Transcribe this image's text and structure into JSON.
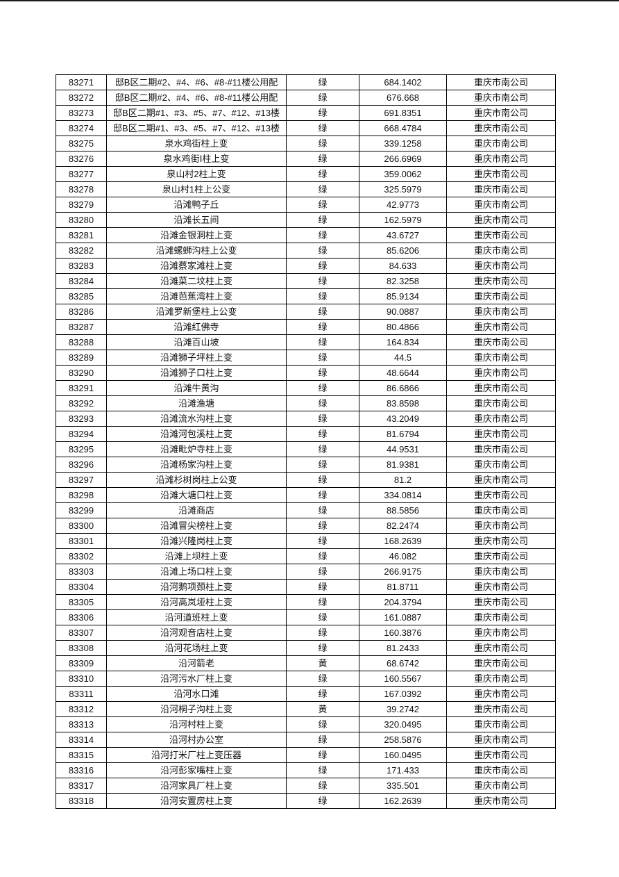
{
  "page": {
    "background_color": "#ffffff",
    "top_edge_color": "#1c1c1c",
    "table_border_color": "#000000"
  },
  "table": {
    "columns": [
      {
        "key": "id"
      },
      {
        "key": "name"
      },
      {
        "key": "status"
      },
      {
        "key": "value"
      },
      {
        "key": "company"
      }
    ],
    "rows": [
      {
        "id": "83271",
        "name": "邸B区二期#2、#4、#6、#8-#11楼公用配",
        "status": "绿",
        "value": "684.1402",
        "company": "重庆市南公司"
      },
      {
        "id": "83272",
        "name": "邸B区二期#2、#4、#6、#8-#11楼公用配",
        "status": "绿",
        "value": "676.668",
        "company": "重庆市南公司"
      },
      {
        "id": "83273",
        "name": "邸B区二期#1、#3、#5、#7、#12、#13楼",
        "status": "绿",
        "value": "691.8351",
        "company": "重庆市南公司"
      },
      {
        "id": "83274",
        "name": "邸B区二期#1、#3、#5、#7、#12、#13楼",
        "status": "绿",
        "value": "668.4784",
        "company": "重庆市南公司"
      },
      {
        "id": "83275",
        "name": "泉水鸡街柱上变",
        "status": "绿",
        "value": "339.1258",
        "company": "重庆市南公司"
      },
      {
        "id": "83276",
        "name": "泉水鸡街Ⅰ柱上变",
        "status": "绿",
        "value": "266.6969",
        "company": "重庆市南公司"
      },
      {
        "id": "83277",
        "name": "泉山村2柱上变",
        "status": "绿",
        "value": "359.0062",
        "company": "重庆市南公司"
      },
      {
        "id": "83278",
        "name": "泉山村1柱上公变",
        "status": "绿",
        "value": "325.5979",
        "company": "重庆市南公司"
      },
      {
        "id": "83279",
        "name": "沿滩鸭子丘",
        "status": "绿",
        "value": "42.9773",
        "company": "重庆市南公司"
      },
      {
        "id": "83280",
        "name": "沿滩长五间",
        "status": "绿",
        "value": "162.5979",
        "company": "重庆市南公司"
      },
      {
        "id": "83281",
        "name": "沿滩金银洞柱上变",
        "status": "绿",
        "value": "43.6727",
        "company": "重庆市南公司"
      },
      {
        "id": "83282",
        "name": "沿滩螺蛳沟柱上公变",
        "status": "绿",
        "value": "85.6206",
        "company": "重庆市南公司"
      },
      {
        "id": "83283",
        "name": "沿滩蔡家滩柱上变",
        "status": "绿",
        "value": "84.633",
        "company": "重庆市南公司"
      },
      {
        "id": "83284",
        "name": "沿滩菜二坟柱上变",
        "status": "绿",
        "value": "82.3258",
        "company": "重庆市南公司"
      },
      {
        "id": "83285",
        "name": "沿滩芭蕉湾柱上变",
        "status": "绿",
        "value": "85.9134",
        "company": "重庆市南公司"
      },
      {
        "id": "83286",
        "name": "沿滩罗新堡柱上公变",
        "status": "绿",
        "value": "90.0887",
        "company": "重庆市南公司"
      },
      {
        "id": "83287",
        "name": "沿滩红佛寺",
        "status": "绿",
        "value": "80.4866",
        "company": "重庆市南公司"
      },
      {
        "id": "83288",
        "name": "沿滩百山坡",
        "status": "绿",
        "value": "164.834",
        "company": "重庆市南公司"
      },
      {
        "id": "83289",
        "name": "沿滩狮子坪柱上变",
        "status": "绿",
        "value": "44.5",
        "company": "重庆市南公司"
      },
      {
        "id": "83290",
        "name": "沿滩狮子口柱上变",
        "status": "绿",
        "value": "48.6644",
        "company": "重庆市南公司"
      },
      {
        "id": "83291",
        "name": "沿滩牛黄沟",
        "status": "绿",
        "value": "86.6866",
        "company": "重庆市南公司"
      },
      {
        "id": "83292",
        "name": "沿滩渔塘",
        "status": "绿",
        "value": "83.8598",
        "company": "重庆市南公司"
      },
      {
        "id": "83293",
        "name": "沿滩流水沟柱上变",
        "status": "绿",
        "value": "43.2049",
        "company": "重庆市南公司"
      },
      {
        "id": "83294",
        "name": "沿滩河包溪柱上变",
        "status": "绿",
        "value": "81.6794",
        "company": "重庆市南公司"
      },
      {
        "id": "83295",
        "name": "沿滩毗炉寺柱上变",
        "status": "绿",
        "value": "44.9531",
        "company": "重庆市南公司"
      },
      {
        "id": "83296",
        "name": "沿滩杨家沟柱上变",
        "status": "绿",
        "value": "81.9381",
        "company": "重庆市南公司"
      },
      {
        "id": "83297",
        "name": "沿滩杉树岗柱上公变",
        "status": "绿",
        "value": "81.2",
        "company": "重庆市南公司"
      },
      {
        "id": "83298",
        "name": "沿滩大塘口柱上变",
        "status": "绿",
        "value": "334.0814",
        "company": "重庆市南公司"
      },
      {
        "id": "83299",
        "name": "沿滩商店",
        "status": "绿",
        "value": "88.5856",
        "company": "重庆市南公司"
      },
      {
        "id": "83300",
        "name": "沿滩冒尖榜柱上变",
        "status": "绿",
        "value": "82.2474",
        "company": "重庆市南公司"
      },
      {
        "id": "83301",
        "name": "沿滩兴隆岗柱上变",
        "status": "绿",
        "value": "168.2639",
        "company": "重庆市南公司"
      },
      {
        "id": "83302",
        "name": "沿滩上坝柱上变",
        "status": "绿",
        "value": "46.082",
        "company": "重庆市南公司"
      },
      {
        "id": "83303",
        "name": "沿滩上场口柱上变",
        "status": "绿",
        "value": "266.9175",
        "company": "重庆市南公司"
      },
      {
        "id": "83304",
        "name": "沿河鹅项颈柱上变",
        "status": "绿",
        "value": "81.8711",
        "company": "重庆市南公司"
      },
      {
        "id": "83305",
        "name": "沿河高岚垭柱上变",
        "status": "绿",
        "value": "204.3794",
        "company": "重庆市南公司"
      },
      {
        "id": "83306",
        "name": "沿河道班柱上变",
        "status": "绿",
        "value": "161.0887",
        "company": "重庆市南公司"
      },
      {
        "id": "83307",
        "name": "沿河观音店柱上变",
        "status": "绿",
        "value": "160.3876",
        "company": "重庆市南公司"
      },
      {
        "id": "83308",
        "name": "沿河花场柱上变",
        "status": "绿",
        "value": "81.2433",
        "company": "重庆市南公司"
      },
      {
        "id": "83309",
        "name": "沿河箭老",
        "status": "黄",
        "value": "68.6742",
        "company": "重庆市南公司"
      },
      {
        "id": "83310",
        "name": "沿河污水厂柱上变",
        "status": "绿",
        "value": "160.5567",
        "company": "重庆市南公司"
      },
      {
        "id": "83311",
        "name": "沿河水口滩",
        "status": "绿",
        "value": "167.0392",
        "company": "重庆市南公司"
      },
      {
        "id": "83312",
        "name": "沿河桐子沟柱上变",
        "status": "黄",
        "value": "39.2742",
        "company": "重庆市南公司"
      },
      {
        "id": "83313",
        "name": "沿河村柱上变",
        "status": "绿",
        "value": "320.0495",
        "company": "重庆市南公司"
      },
      {
        "id": "83314",
        "name": "沿河村办公室",
        "status": "绿",
        "value": "258.5876",
        "company": "重庆市南公司"
      },
      {
        "id": "83315",
        "name": "沿河打米厂柱上变压器",
        "status": "绿",
        "value": "160.0495",
        "company": "重庆市南公司"
      },
      {
        "id": "83316",
        "name": "沿河彭家嘴柱上变",
        "status": "绿",
        "value": "171.433",
        "company": "重庆市南公司"
      },
      {
        "id": "83317",
        "name": "沿河家具厂柱上变",
        "status": "绿",
        "value": "335.501",
        "company": "重庆市南公司"
      },
      {
        "id": "83318",
        "name": "沿河安置房柱上变",
        "status": "绿",
        "value": "162.2639",
        "company": "重庆市南公司"
      }
    ]
  }
}
